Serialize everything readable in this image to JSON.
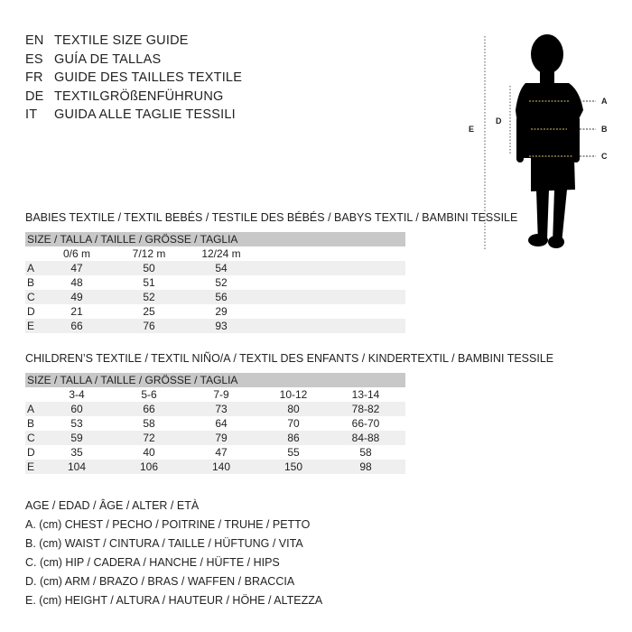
{
  "languages": [
    {
      "code": "EN",
      "text": "TEXTILE SIZE GUIDE"
    },
    {
      "code": "ES",
      "text": "GUÍA DE TALLAS"
    },
    {
      "code": "FR",
      "text": "GUIDE DES TAILLES TEXTILE"
    },
    {
      "code": "DE",
      "text": "TEXTILGRÖßENFÜHRUNG"
    },
    {
      "code": "IT",
      "text": "GUIDA ALLE TAGLIE TESSILI"
    }
  ],
  "babies": {
    "title": "BABIES TEXTILE / TEXTIL BEBÉS / TESTILE DES BÉBÉS / BABYS TEXTIL / BAMBINI TESSILE",
    "header": "SIZE / TALLA / TAILLE / GRÖSSE / TAGLIA",
    "columns": [
      "0/6 m",
      "7/12 m",
      "12/24 m"
    ],
    "rows": [
      {
        "label": "A",
        "values": [
          "47",
          "50",
          "54"
        ]
      },
      {
        "label": "B",
        "values": [
          "48",
          "51",
          "52"
        ]
      },
      {
        "label": "C",
        "values": [
          "49",
          "52",
          "56"
        ]
      },
      {
        "label": "D",
        "values": [
          "21",
          "25",
          "29"
        ]
      },
      {
        "label": "E",
        "values": [
          "66",
          "76",
          "93"
        ]
      }
    ]
  },
  "children": {
    "title": "CHILDREN’S TEXTILE / TEXTIL NIÑO/A / TEXTIL DES ENFANTS / KINDERTEXTIL / BAMBINI TESSILE",
    "header": "SIZE / TALLA / TAILLE / GRÖSSE / TAGLIA",
    "columns": [
      "3-4",
      "5-6",
      "7-9",
      "10-12",
      "13-14"
    ],
    "rows": [
      {
        "label": "A",
        "values": [
          "60",
          "66",
          "73",
          "80",
          "78-82"
        ]
      },
      {
        "label": "B",
        "values": [
          "53",
          "58",
          "64",
          "70",
          "66-70"
        ]
      },
      {
        "label": "C",
        "values": [
          "59",
          "72",
          "79",
          "86",
          "84-88"
        ]
      },
      {
        "label": "D",
        "values": [
          "35",
          "40",
          "47",
          "55",
          "58"
        ]
      },
      {
        "label": "E",
        "values": [
          "104",
          "106",
          "140",
          "150",
          "98"
        ]
      }
    ]
  },
  "legend": [
    "AGE / EDAD / ÂGE / ALTER / ETÀ",
    "A. (cm) CHEST / PECHO / POITRINE / TRUHE / PETTO",
    "B. (cm) WAIST / CINTURA / TAILLE / HÜFTUNG / VITA",
    "C. (cm) HIP / CADERA / HANCHE / HÜFTE / HIPS",
    "D. (cm) ARM / BRAZO / BRAS / WAFFEN / BRACCIA",
    "E. (cm) HEIGHT / ALTURA / HAUTEUR / HÖHE / ALTEZZA"
  ],
  "figure": {
    "labels": {
      "A": "A",
      "B": "B",
      "C": "C",
      "D": "D",
      "E": "E"
    }
  }
}
